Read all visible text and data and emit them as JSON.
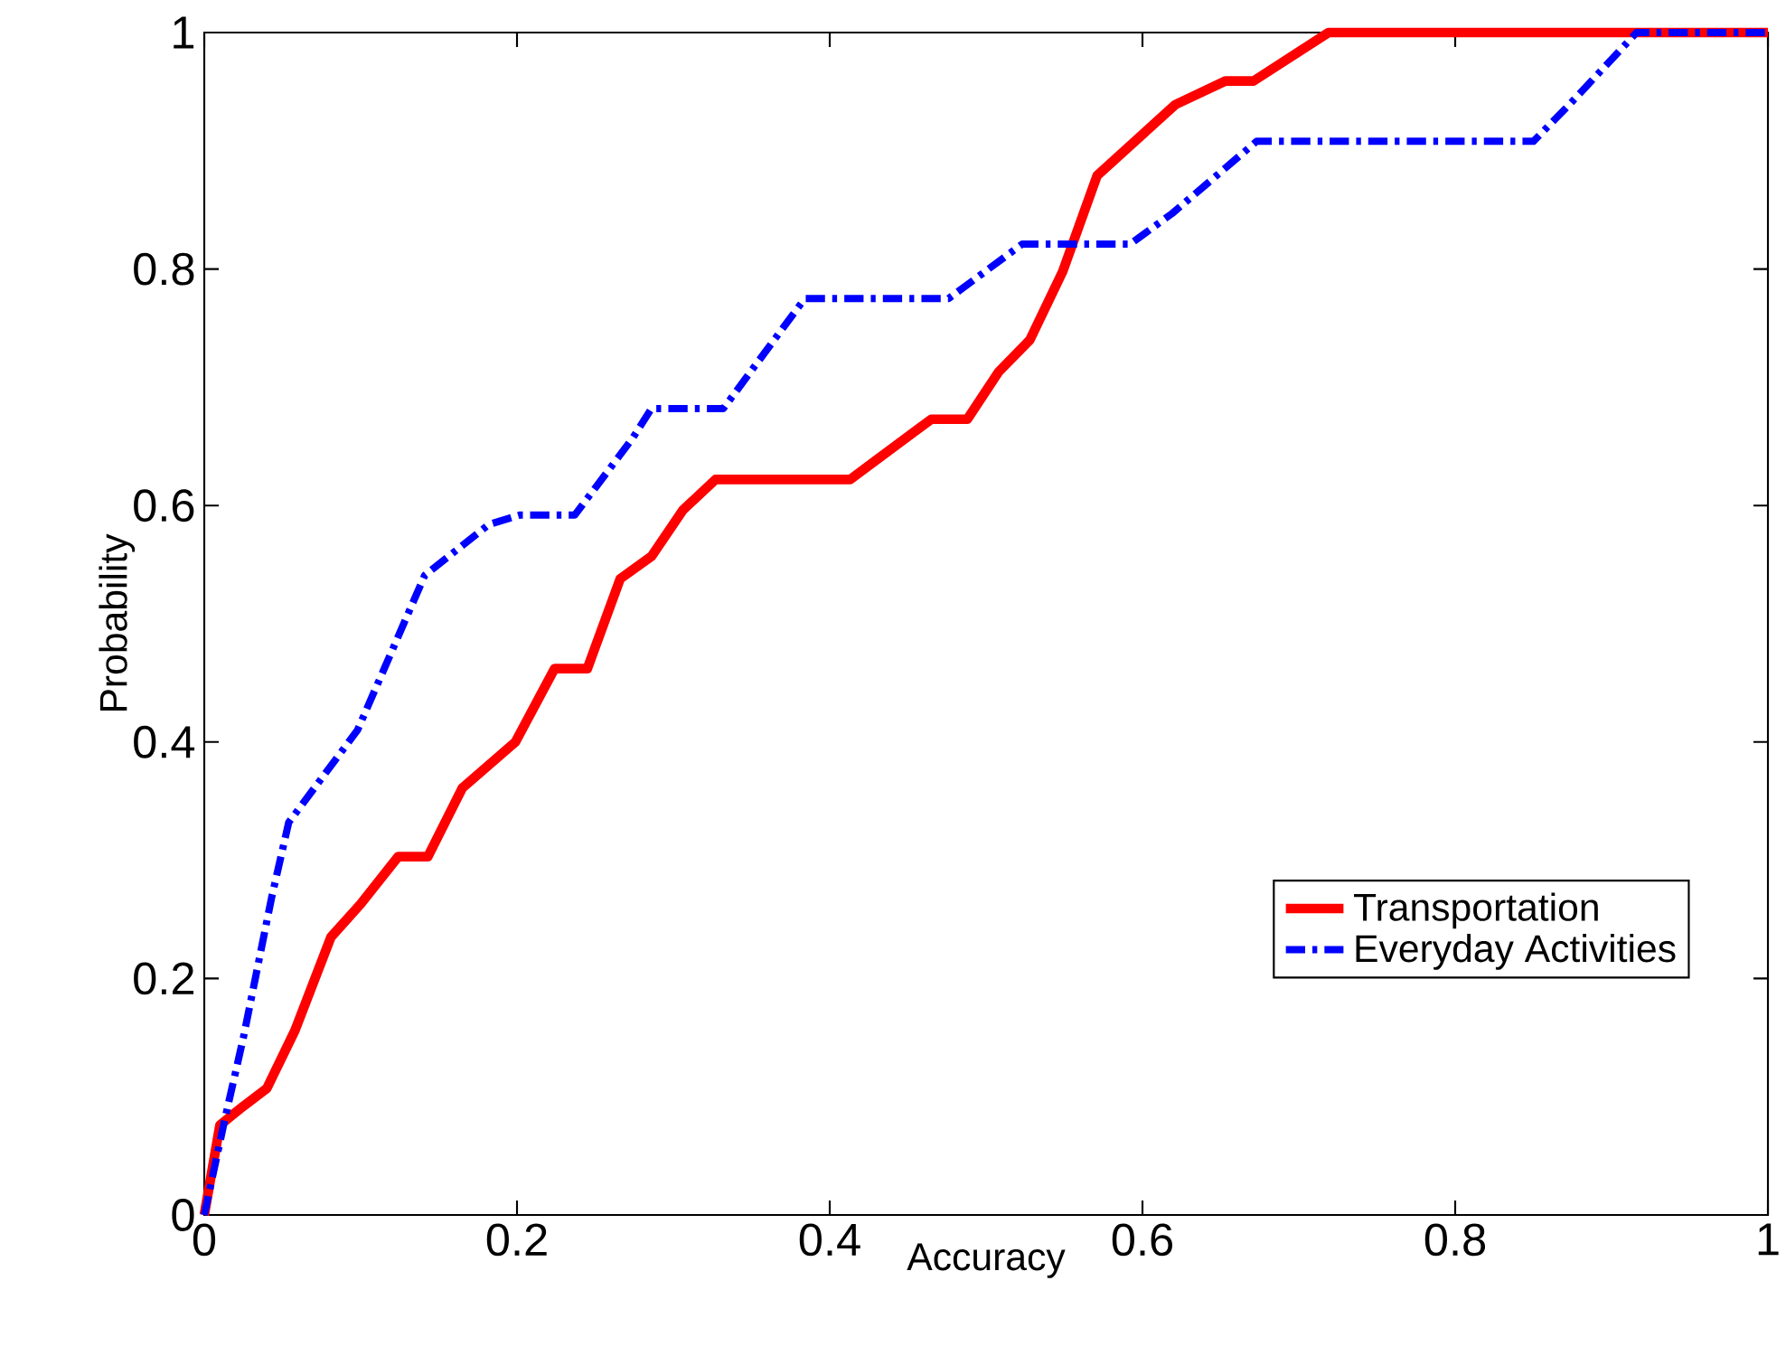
{
  "chart_data": {
    "type": "line",
    "xlabel": "Accuracy",
    "ylabel": "Probability",
    "xlim": [
      0,
      1
    ],
    "ylim": [
      0,
      1
    ],
    "xticks": [
      0,
      0.2,
      0.4,
      0.6,
      0.8,
      1
    ],
    "yticks": [
      0,
      0.2,
      0.4,
      0.6,
      0.8,
      1
    ],
    "legend": "bottom right",
    "grid": false,
    "series": [
      {
        "name": "Transportation",
        "color": "#ff0000",
        "line_style": "solid",
        "x": [
          0,
          0.01,
          0.025,
          0.04,
          0.058,
          0.081,
          0.1,
          0.124,
          0.143,
          0.165,
          0.199,
          0.224,
          0.245,
          0.266,
          0.286,
          0.306,
          0.327,
          0.378,
          0.413,
          0.465,
          0.488,
          0.508,
          0.528,
          0.549,
          0.571,
          0.621,
          0.653,
          0.671,
          0.719,
          1
        ],
        "values": [
          0,
          0.076,
          0.092,
          0.107,
          0.156,
          0.235,
          0.263,
          0.303,
          0.303,
          0.361,
          0.4,
          0.462,
          0.462,
          0.538,
          0.557,
          0.596,
          0.622,
          0.622,
          0.622,
          0.673,
          0.673,
          0.713,
          0.74,
          0.798,
          0.879,
          0.939,
          0.959,
          0.959,
          1,
          1
        ]
      },
      {
        "name": "Everyday Activities",
        "color": "#0000ff",
        "line_style": "dashed",
        "x": [
          0,
          0.013,
          0.025,
          0.043,
          0.054,
          0.098,
          0.141,
          0.182,
          0.202,
          0.237,
          0.274,
          0.286,
          0.332,
          0.384,
          0.476,
          0.523,
          0.592,
          0.619,
          0.673,
          0.85,
          0.873,
          0.916,
          1
        ],
        "values": [
          0,
          0.08,
          0.15,
          0.268,
          0.332,
          0.41,
          0.541,
          0.584,
          0.592,
          0.592,
          0.657,
          0.682,
          0.682,
          0.775,
          0.775,
          0.821,
          0.821,
          0.847,
          0.908,
          0.908,
          0.939,
          1,
          1
        ]
      }
    ]
  }
}
